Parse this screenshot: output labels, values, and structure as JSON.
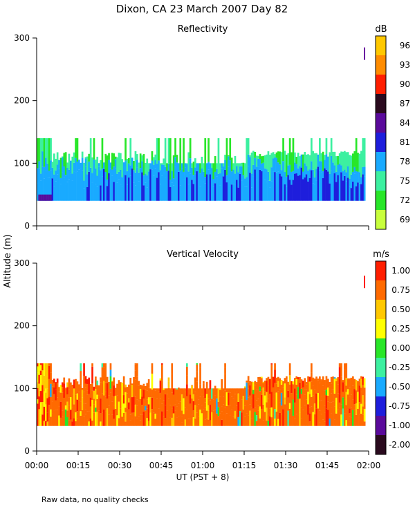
{
  "title": "Dixon, CA 23 March 2007  Day  82",
  "shared_ylabel": "Altitude (m)",
  "footer_note": "Raw data, no quality checks",
  "chart_data": [
    {
      "type": "heatmap",
      "title": "Reflectivity",
      "xlabel": "UT  (PST + 8)",
      "ylabel": "Altitude (m)",
      "xlim": [
        0,
        120
      ],
      "ylim": [
        0,
        300
      ],
      "x_ticks": [
        0,
        15,
        30,
        45,
        60,
        75,
        90,
        105,
        120
      ],
      "x_tick_labels": [
        "00:00",
        "00:15",
        "00:30",
        "00:45",
        "01:00",
        "01:15",
        "01:30",
        "01:45",
        "02:00"
      ],
      "y_ticks": [
        0,
        100,
        200,
        300
      ],
      "y_tick_labels": [
        "0",
        "100",
        "200",
        "300"
      ],
      "colorbar": {
        "unit": "dB",
        "levels": [
          69,
          72,
          75,
          78,
          81,
          84,
          87,
          90,
          93,
          96
        ],
        "labels": [
          "69",
          "72",
          "75",
          "78",
          "81",
          "84",
          "87",
          "90",
          "93",
          "96"
        ],
        "colors": [
          "#c8ff3c",
          "#28e628",
          "#3cf0a0",
          "#19aaff",
          "#1e1edc",
          "#5a0a9b",
          "#2a0a1e",
          "#ff1e00",
          "#ff8c00",
          "#ffc800"
        ]
      },
      "echo_base_altitude": 40,
      "echo_top_range": [
        100,
        140
      ],
      "marker": {
        "time": 118.5,
        "altitude": 275,
        "color": "#6a0aa0"
      }
    },
    {
      "type": "heatmap",
      "title": "Vertical Velocity",
      "xlabel": "UT  (PST + 8)",
      "ylabel": "Altitude (m)",
      "xlim": [
        0,
        120
      ],
      "ylim": [
        0,
        300
      ],
      "x_ticks": [
        0,
        15,
        30,
        45,
        60,
        75,
        90,
        105,
        120
      ],
      "x_tick_labels": [
        "00:00",
        "00:15",
        "00:30",
        "00:45",
        "01:00",
        "01:15",
        "01:30",
        "01:45",
        "02:00"
      ],
      "y_ticks": [
        0,
        100,
        200,
        300
      ],
      "y_tick_labels": [
        "0",
        "100",
        "200",
        "300"
      ],
      "colorbar": {
        "unit": "m/s",
        "levels": [
          -2.0,
          -1.0,
          -0.75,
          -0.5,
          -0.25,
          0.0,
          0.25,
          0.5,
          0.75,
          1.0
        ],
        "labels": [
          "-2.00",
          "-1.00",
          "-0.75",
          "-0.50",
          "-0.25",
          "0.00",
          "0.25",
          "0.50",
          "0.75",
          "1.00"
        ],
        "colors": [
          "#2a0a1e",
          "#5a0a9b",
          "#1e1edc",
          "#19aaff",
          "#3cf0a0",
          "#28e628",
          "#ffff00",
          "#ffc800",
          "#ff6a00",
          "#ff1e00"
        ]
      },
      "echo_base_altitude": 40,
      "echo_top_range": [
        100,
        140
      ],
      "marker": {
        "time": 118.5,
        "altitude": 270,
        "color": "#ff1e00"
      }
    }
  ]
}
